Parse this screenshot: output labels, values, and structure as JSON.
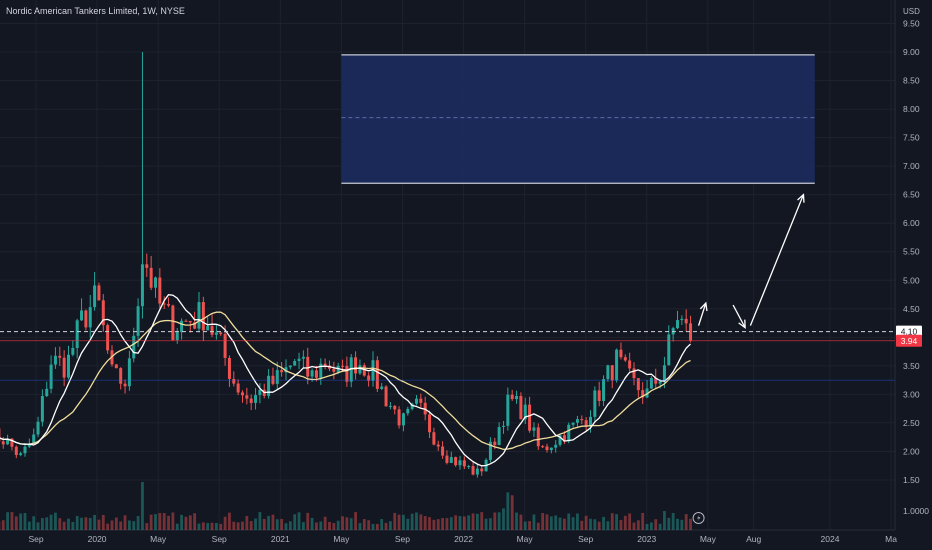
{
  "header": {
    "symbol_title": "Nordic American Tankers Limited, 1W, NYSE"
  },
  "chart_data": {
    "type": "candlestick",
    "currency_label": "USD",
    "y_ticks": [
      "9.50",
      "9.00",
      "8.50",
      "8.00",
      "7.50",
      "7.00",
      "6.50",
      "6.00",
      "5.50",
      "5.00",
      "4.50",
      "4.00",
      "3.50",
      "3.00",
      "2.50",
      "2.00",
      "1.50"
    ],
    "volume_tick": "1.0000",
    "x_ticks": [
      {
        "label": "Sep",
        "date": "2019-09"
      },
      {
        "label": "2020",
        "date": "2020-01"
      },
      {
        "label": "May",
        "date": "2020-05"
      },
      {
        "label": "Sep",
        "date": "2020-09"
      },
      {
        "label": "2021",
        "date": "2021-01"
      },
      {
        "label": "May",
        "date": "2021-05"
      },
      {
        "label": "Sep",
        "date": "2021-09"
      },
      {
        "label": "2022",
        "date": "2022-01"
      },
      {
        "label": "May",
        "date": "2022-05"
      },
      {
        "label": "Sep",
        "date": "2022-09"
      },
      {
        "label": "2023",
        "date": "2023-01"
      },
      {
        "label": "May",
        "date": "2023-05"
      },
      {
        "label": "Aug",
        "date": "2023-08"
      },
      {
        "label": "2024",
        "date": "2024-01"
      },
      {
        "label": "Ma",
        "date": "2024-05"
      }
    ],
    "price_path": [
      [
        "2019-06",
        2.3
      ],
      [
        "2019-07",
        2.2
      ],
      [
        "2019-08",
        1.9
      ],
      [
        "2019-09",
        2.3
      ],
      [
        "2019-10",
        3.6
      ],
      [
        "2019-11",
        3.5
      ],
      [
        "2019-12",
        4.3
      ],
      [
        "2020-01",
        4.7
      ],
      [
        "2020-02",
        3.3
      ],
      [
        "2020-03",
        3.2
      ],
      [
        "2020-04",
        5.5
      ],
      [
        "2020-05",
        4.6
      ],
      [
        "2020-06",
        4.2
      ],
      [
        "2020-07",
        4.3
      ],
      [
        "2020-08",
        4.4
      ],
      [
        "2020-09",
        3.9
      ],
      [
        "2020-10",
        3.2
      ],
      [
        "2020-11",
        2.9
      ],
      [
        "2020-12",
        3.1
      ],
      [
        "2021-01",
        3.3
      ],
      [
        "2021-02",
        3.6
      ],
      [
        "2021-03",
        3.3
      ],
      [
        "2021-04",
        3.6
      ],
      [
        "2021-05",
        3.3
      ],
      [
        "2021-06",
        3.6
      ],
      [
        "2021-07",
        3.4
      ],
      [
        "2021-08",
        2.9
      ],
      [
        "2021-09",
        2.5
      ],
      [
        "2021-10",
        2.8
      ],
      [
        "2021-11",
        2.3
      ],
      [
        "2021-12",
        1.9
      ],
      [
        "2022-01",
        1.75
      ],
      [
        "2022-02",
        1.6
      ],
      [
        "2022-03",
        2.2
      ],
      [
        "2022-04",
        2.9
      ],
      [
        "2022-05",
        2.7
      ],
      [
        "2022-06",
        2.0
      ],
      [
        "2022-07",
        2.2
      ],
      [
        "2022-08",
        2.4
      ],
      [
        "2022-09",
        2.6
      ],
      [
        "2022-10",
        3.1
      ],
      [
        "2022-11",
        3.6
      ],
      [
        "2022-12",
        3.2
      ],
      [
        "2023-01",
        3.0
      ],
      [
        "2023-02",
        3.4
      ],
      [
        "2023-03",
        4.4
      ],
      [
        "2023-04",
        3.9
      ]
    ],
    "spike": {
      "date": "2020-04",
      "high": 9.0
    },
    "last_close": 3.94,
    "ref_price": 4.1,
    "lower_ref_price": 3.25,
    "target_zone": {
      "start": "2021-05",
      "end": "2023-12",
      "top": 8.95,
      "mid": 7.85,
      "bottom": 6.7
    },
    "projection": [
      [
        "2023-04",
        4.1
      ],
      [
        "2023-05",
        4.6
      ],
      [
        "2023-06",
        4.1
      ],
      [
        "2023-07",
        4.1
      ],
      [
        "2023-11",
        6.5
      ]
    ]
  },
  "price_badges": {
    "ref_label": "4.10",
    "last_label": "3.94"
  },
  "colors": {
    "background": "#131722",
    "grid": "#1e222d",
    "up_candle": "#26a69a",
    "down_candle": "#ef5350",
    "ma_fast": "#ffffff",
    "ma_slow": "#f0dd9b",
    "zone_fill": "#1c2b5e",
    "zone_border": "#c7cbd6",
    "last_price_badge": "#f23645",
    "ref_badge_bg": "#ffffff"
  },
  "icons": {
    "alert": "lightning-icon"
  }
}
